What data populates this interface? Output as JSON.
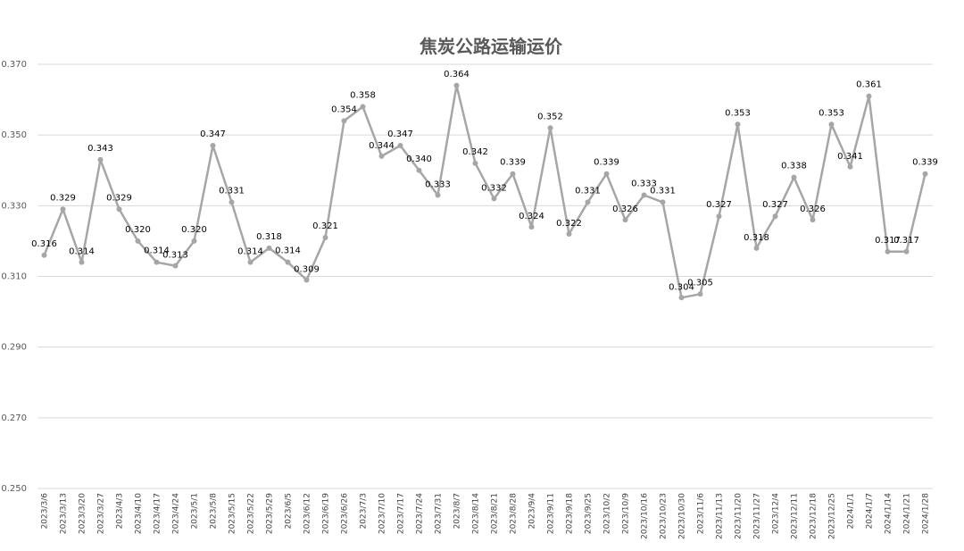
{
  "chart_data": {
    "type": "line",
    "title": "焦炭公路运输运价",
    "xlabel": "",
    "ylabel": "",
    "ylim": [
      0.25,
      0.37
    ],
    "yticks": [
      "0.250",
      "0.270",
      "0.290",
      "0.310",
      "0.330",
      "0.350",
      "0.370"
    ],
    "grid": true,
    "legend": "none",
    "line_color": "#A6A6A6",
    "categories": [
      "2023/3/6",
      "2023/3/13",
      "2023/3/20",
      "2023/3/27",
      "2023/4/3",
      "2023/4/10",
      "2023/4/17",
      "2023/4/24",
      "2023/5/1",
      "2023/5/8",
      "2023/5/15",
      "2023/5/22",
      "2023/5/29",
      "2023/6/5",
      "2023/6/12",
      "2023/6/19",
      "2023/6/26",
      "2023/7/3",
      "2023/7/10",
      "2023/7/17",
      "2023/7/24",
      "2023/7/31",
      "2023/8/7",
      "2023/8/14",
      "2023/8/21",
      "2023/8/28",
      "2023/9/4",
      "2023/9/11",
      "2023/9/18",
      "2023/9/25",
      "2023/10/2",
      "2023/10/9",
      "2023/10/16",
      "2023/10/23",
      "2023/10/30",
      "2023/11/6",
      "2023/11/13",
      "2023/11/20",
      "2023/11/27",
      "2023/12/4",
      "2023/12/11",
      "2023/12/18",
      "2023/12/25",
      "2024/1/1",
      "2024/1/7",
      "2024/1/14",
      "2024/1/21",
      "2024/1/28"
    ],
    "values": [
      0.316,
      0.329,
      0.314,
      0.343,
      0.329,
      0.32,
      0.314,
      0.313,
      0.32,
      0.347,
      0.331,
      0.314,
      0.318,
      0.314,
      0.309,
      0.321,
      0.354,
      0.358,
      0.344,
      0.347,
      0.34,
      0.333,
      0.364,
      0.342,
      0.332,
      0.339,
      0.324,
      0.352,
      0.322,
      0.331,
      0.339,
      0.326,
      0.333,
      0.331,
      0.304,
      0.305,
      0.327,
      0.353,
      0.318,
      0.327,
      0.338,
      0.326,
      0.353,
      0.341,
      0.361,
      0.317,
      0.317,
      0.339
    ],
    "labels": [
      "0.316",
      "0.329",
      "0.314",
      "0.343",
      "0.329",
      "0.320",
      "0.314",
      "0.313",
      "0.320",
      "0.347",
      "0.331",
      "0.314",
      "0.318",
      "0.314",
      "0.309",
      "0.321",
      "0.354",
      "0.358",
      "0.344",
      "0.347",
      "0.340",
      "0.333",
      "0.364",
      "0.342",
      "0.332",
      "0.339",
      "0.324",
      "0.352",
      "0.322",
      "0.331",
      "0.339",
      "0.326",
      "0.333",
      "0.331",
      "0.304",
      "0.305",
      "0.327",
      "0.353",
      "0.318",
      "0.327",
      "0.338",
      "0.326",
      "0.353",
      "0.341",
      "0.361",
      "0.317",
      "0.317",
      "0.339"
    ]
  }
}
